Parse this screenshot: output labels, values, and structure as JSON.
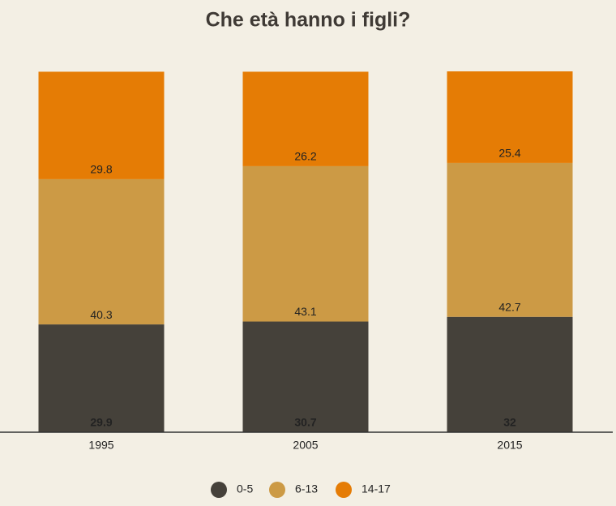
{
  "chart_data": {
    "type": "stacked-bar",
    "title": "Che età hanno i figli?",
    "categories": [
      "1995",
      "2005",
      "2015"
    ],
    "series": [
      {
        "name": "0-5",
        "color": "#45413a",
        "values": [
          29.9,
          30.7,
          32
        ]
      },
      {
        "name": "6-13",
        "color": "#cc9a45",
        "values": [
          40.3,
          43.1,
          42.7
        ]
      },
      {
        "name": "14-17",
        "color": "#e57c05",
        "values": [
          29.8,
          26.2,
          25.4
        ]
      }
    ]
  }
}
